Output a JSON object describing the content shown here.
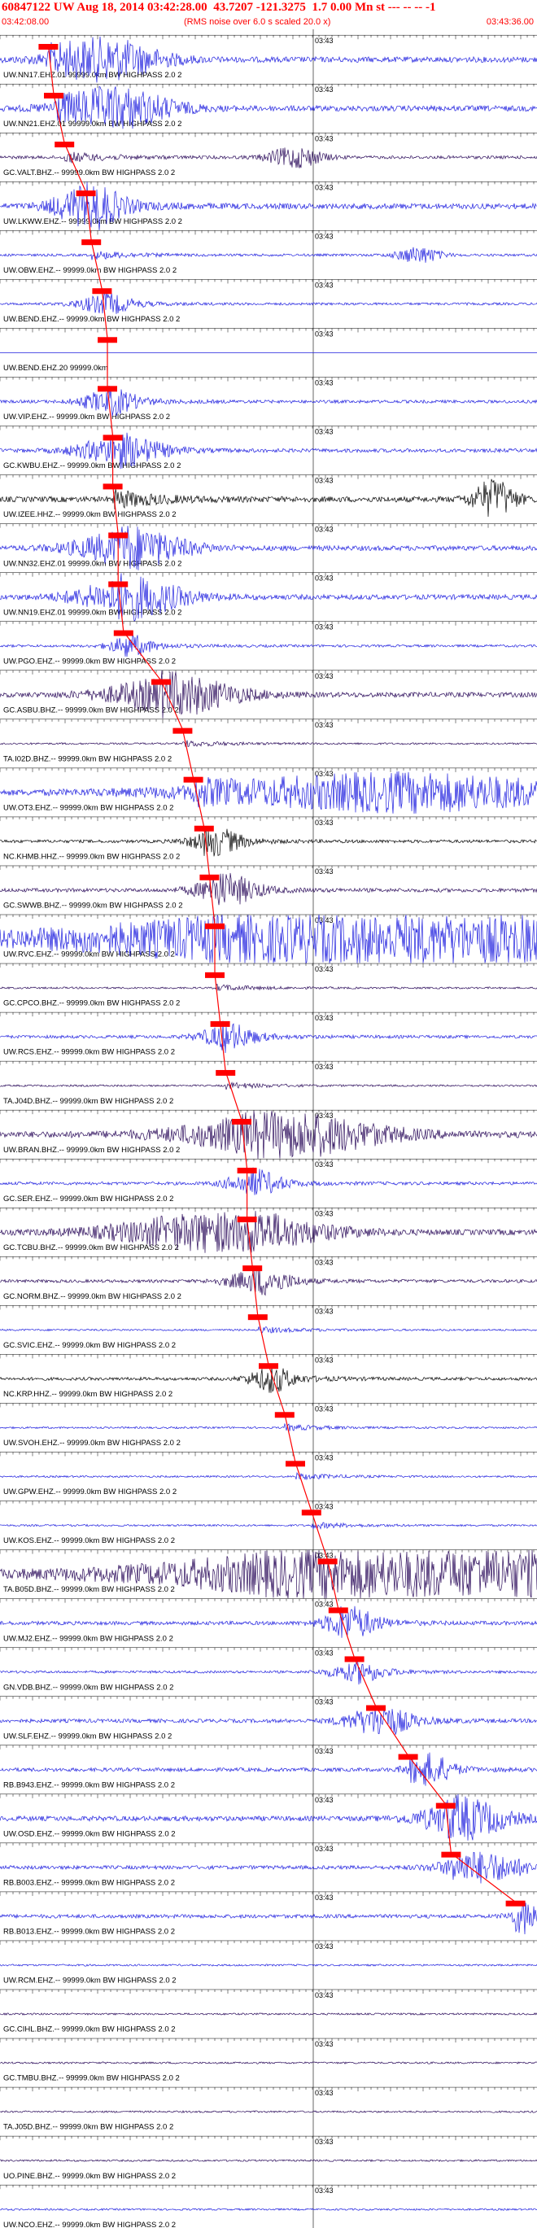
{
  "header": {
    "event_id": "60847122",
    "network": "UW",
    "date": "Aug 18, 2014",
    "time": "03:42:28.00",
    "lat": "43.7207",
    "lon": "-121.3275",
    "mag": "1.7",
    "depth": "0.00",
    "mag_type": "Mn",
    "type": "st",
    "flags": "--- -- -- -1",
    "start_time": "03:42:08.00",
    "end_time": "03:43:36.00",
    "scale_note": "(RMS noise over 6.0 s scaled 20.0 x)"
  },
  "chart_data": {
    "type": "line",
    "title": "60847122 UW Aug 18, 2014 03:42:28.00   43.7207  -121.3275   1.7 0.00 Mn st --- -- -- -1",
    "x_range": [
      "03:42:08.00",
      "03:43:36.00"
    ],
    "minute_tick_label": "03:43",
    "colors": {
      "blue": "#1f1fdf",
      "purple": "#2a0a5a",
      "black": "#000000",
      "pick": "#ff0000",
      "text": "#000000"
    },
    "traces": [
      {
        "label": "UW.NN17.EHZ.01 99999.0km BW  HIGHPASS  2.0  2",
        "color": "blue",
        "pick": 0.09,
        "amp": 0.9,
        "burst": 0.2,
        "bw": 0.1
      },
      {
        "label": "UW.NN21.EHZ.01 99999.0km BW  HIGHPASS  2.0  2",
        "color": "blue",
        "pick": 0.1,
        "amp": 0.9,
        "burst": 0.22,
        "bw": 0.1
      },
      {
        "label": "GC.VALT.BHZ.-- 99999.0km BW  HIGHPASS  2.0  2",
        "color": "purple",
        "pick": 0.12,
        "amp": 0.5,
        "burst": 0.55,
        "bw": 0.05
      },
      {
        "label": "UW.LKWW.EHZ.-- 99999.0km BW  HIGHPASS  2.0  2",
        "color": "blue",
        "pick": 0.16,
        "amp": 0.9,
        "burst": 0.16,
        "bw": 0.06
      },
      {
        "label": "UW.OBW.EHZ.-- 99999.0km BW  HIGHPASS  2.0  2",
        "color": "blue",
        "pick": 0.17,
        "amp": 0.4,
        "burst": 0.78,
        "bw": 0.04
      },
      {
        "label": "UW.BEND.EHZ.-- 99999.0km BW  HIGHPASS  2.0  2",
        "color": "blue",
        "pick": 0.19,
        "amp": 0.4,
        "burst": 0.19,
        "bw": 0.05
      },
      {
        "label": "UW.BEND.EHZ.20 99999.0km",
        "color": "blue",
        "pick": 0.2,
        "amp": 0.0,
        "burst": 0.0,
        "bw": 0.0
      },
      {
        "label": "UW.VIP.EHZ.-- 99999.0km BW  HIGHPASS  2.0  2",
        "color": "blue",
        "pick": 0.2,
        "amp": 0.5,
        "burst": 0.2,
        "bw": 0.05
      },
      {
        "label": "GC.KWBU.EHZ.-- 99999.0km BW  HIGHPASS  2.0  2",
        "color": "blue",
        "pick": 0.21,
        "amp": 0.6,
        "burst": 0.22,
        "bw": 0.08
      },
      {
        "label": "UW.IZEE.HHZ.-- 99999.0km BW  HIGHPASS  2.0  2",
        "color": "black",
        "pick": 0.21,
        "amp": 0.9,
        "burst": 0.92,
        "bw": 0.04
      },
      {
        "label": "UW.NN32.EHZ.01 99999.0km BW  HIGHPASS  2.0  2",
        "color": "blue",
        "pick": 0.22,
        "amp": 0.8,
        "burst": 0.24,
        "bw": 0.1
      },
      {
        "label": "UW.NN19.EHZ.01 99999.0km BW  HIGHPASS  2.0  2",
        "color": "blue",
        "pick": 0.22,
        "amp": 0.8,
        "burst": 0.24,
        "bw": 0.1
      },
      {
        "label": "UW.PGO.EHZ.-- 99999.0km BW  HIGHPASS  2.0  2",
        "color": "blue",
        "pick": 0.23,
        "amp": 0.4,
        "burst": 0.24,
        "bw": 0.04
      },
      {
        "label": "GC.ASBU.BHZ.-- 99999.0km BW  HIGHPASS  2.0  2",
        "color": "purple",
        "pick": 0.3,
        "amp": 0.8,
        "burst": 0.32,
        "bw": 0.12
      },
      {
        "label": "TA.I02D.BHZ.-- 99999.0km BW  HIGHPASS  2.0  2",
        "color": "purple",
        "pick": 0.34,
        "amp": 0.3,
        "burst": 0.0,
        "bw": 0.0
      },
      {
        "label": "UW.OT3.EHZ.-- 99999.0km BW  HIGHPASS  2.0  2",
        "color": "blue",
        "pick": 0.36,
        "amp": 0.9,
        "burst": 0.75,
        "bw": 0.35
      },
      {
        "label": "NC.KHMB.HHZ.-- 99999.0km BW  HIGHPASS  2.0  2",
        "color": "black",
        "pick": 0.38,
        "amp": 0.5,
        "burst": 0.4,
        "bw": 0.05
      },
      {
        "label": "GC.SWWB.BHZ.-- 99999.0km BW  HIGHPASS  2.0  2",
        "color": "purple",
        "pick": 0.39,
        "amp": 0.6,
        "burst": 0.42,
        "bw": 0.06
      },
      {
        "label": "UW.RVC.EHZ.-- 99999.0km BW  HIGHPASS  2.0  2",
        "color": "blue",
        "pick": 0.4,
        "amp": 1.4,
        "burst": 0.72,
        "bw": 0.55
      },
      {
        "label": "GC.CPCO.BHZ.-- 99999.0km BW  HIGHPASS  2.0  2",
        "color": "purple",
        "pick": 0.4,
        "amp": 0.3,
        "burst": 0.0,
        "bw": 0.0
      },
      {
        "label": "UW.RCS.EHZ.-- 99999.0km BW  HIGHPASS  2.0  2",
        "color": "blue",
        "pick": 0.41,
        "amp": 0.5,
        "burst": 0.42,
        "bw": 0.05
      },
      {
        "label": "TA.J04D.BHZ.-- 99999.0km BW  HIGHPASS  2.0  2",
        "color": "purple",
        "pick": 0.42,
        "amp": 0.3,
        "burst": 0.0,
        "bw": 0.0
      },
      {
        "label": "UW.BRAN.BHZ.-- 99999.0km BW  HIGHPASS  2.0  2",
        "color": "purple",
        "pick": 0.45,
        "amp": 1.0,
        "burst": 0.53,
        "bw": 0.18
      },
      {
        "label": "GC.SER.EHZ.-- 99999.0km BW  HIGHPASS  2.0  2",
        "color": "blue",
        "pick": 0.46,
        "amp": 0.5,
        "burst": 0.47,
        "bw": 0.05
      },
      {
        "label": "GC.TCBU.BHZ.-- 99999.0km BW  HIGHPASS  2.0  2",
        "color": "purple",
        "pick": 0.46,
        "amp": 0.9,
        "burst": 0.4,
        "bw": 0.18
      },
      {
        "label": "GC.NORM.BHZ.-- 99999.0km BW  HIGHPASS  2.0  2",
        "color": "purple",
        "pick": 0.47,
        "amp": 0.5,
        "burst": 0.48,
        "bw": 0.06
      },
      {
        "label": "GC.SVIC.EHZ.-- 99999.0km BW  HIGHPASS  2.0  2",
        "color": "blue",
        "pick": 0.48,
        "amp": 0.3,
        "burst": 0.0,
        "bw": 0.0
      },
      {
        "label": "NC.KRP.HHZ.-- 99999.0km BW  HIGHPASS  2.0  2",
        "color": "black",
        "pick": 0.5,
        "amp": 0.5,
        "burst": 0.5,
        "bw": 0.04
      },
      {
        "label": "UW.SVOH.EHZ.-- 99999.0km BW  HIGHPASS  2.0  2",
        "color": "blue",
        "pick": 0.53,
        "amp": 0.3,
        "burst": 0.0,
        "bw": 0.0
      },
      {
        "label": "UW.GPW.EHZ.-- 99999.0km BW  HIGHPASS  2.0  2",
        "color": "blue",
        "pick": 0.55,
        "amp": 0.3,
        "burst": 0.0,
        "bw": 0.0
      },
      {
        "label": "UW.KOS.EHZ.-- 99999.0km BW  HIGHPASS  2.0  2",
        "color": "blue",
        "pick": 0.58,
        "amp": 0.3,
        "burst": 0.0,
        "bw": 0.0
      },
      {
        "label": "TA.B05D.BHZ.-- 99999.0km BW  HIGHPASS  2.0  2",
        "color": "purple",
        "pick": 0.61,
        "amp": 1.4,
        "burst": 0.75,
        "bw": 0.4
      },
      {
        "label": "UW.MJ2.EHZ.-- 99999.0km BW  HIGHPASS  2.0  2",
        "color": "blue",
        "pick": 0.63,
        "amp": 0.6,
        "burst": 0.65,
        "bw": 0.05
      },
      {
        "label": "GN.VDB.BHZ.-- 99999.0km BW  HIGHPASS  2.0  2",
        "color": "blue",
        "pick": 0.66,
        "amp": 0.4,
        "burst": 0.66,
        "bw": 0.05
      },
      {
        "label": "UW.SLF.EHZ.-- 99999.0km BW  HIGHPASS  2.0  2",
        "color": "blue",
        "pick": 0.7,
        "amp": 0.6,
        "burst": 0.7,
        "bw": 0.06
      },
      {
        "label": "RB.B943.EHZ.-- 99999.0km BW  HIGHPASS  2.0  2",
        "color": "blue",
        "pick": 0.76,
        "amp": 0.6,
        "burst": 0.8,
        "bw": 0.04
      },
      {
        "label": "UW.OSD.EHZ.-- 99999.0km BW  HIGHPASS  2.0  2",
        "color": "blue",
        "pick": 0.83,
        "amp": 0.8,
        "burst": 0.86,
        "bw": 0.08
      },
      {
        "label": "RB.B003.EHZ.-- 99999.0km BW  HIGHPASS  2.0  2",
        "color": "blue",
        "pick": 0.84,
        "amp": 0.6,
        "burst": 0.9,
        "bw": 0.08
      },
      {
        "label": "RB.B013.EHZ.-- 99999.0km BW  HIGHPASS  2.0  2",
        "color": "blue",
        "pick": 0.96,
        "amp": 0.6,
        "burst": 0.98,
        "bw": 0.03
      },
      {
        "label": "UW.RCM.EHZ.-- 99999.0km BW  HIGHPASS  2.0  2",
        "color": "blue",
        "pick": 0.0,
        "amp": 0.3,
        "burst": 0.0,
        "bw": 0.0
      },
      {
        "label": "GC.CIHL.BHZ.-- 99999.0km BW  HIGHPASS  2.0  2",
        "color": "purple",
        "pick": 0.0,
        "amp": 0.3,
        "burst": 0.0,
        "bw": 0.0
      },
      {
        "label": "GC.TMBU.BHZ.-- 99999.0km BW  HIGHPASS  2.0  2",
        "color": "purple",
        "pick": 0.0,
        "amp": 0.3,
        "burst": 0.0,
        "bw": 0.0
      },
      {
        "label": "TA.J05D.BHZ.-- 99999.0km BW  HIGHPASS  2.0  2",
        "color": "purple",
        "pick": 0.0,
        "amp": 0.3,
        "burst": 0.0,
        "bw": 0.0
      },
      {
        "label": "UO.PINE.BHZ.-- 99999.0km BW  HIGHPASS  2.0  2",
        "color": "purple",
        "pick": 0.0,
        "amp": 0.3,
        "burst": 0.0,
        "bw": 0.0
      },
      {
        "label": "UW.NCO.EHZ.-- 99999.0km BW  HIGHPASS  2.0  2",
        "color": "blue",
        "pick": 0.0,
        "amp": 0.3,
        "burst": 0.0,
        "bw": 0.0
      }
    ]
  }
}
